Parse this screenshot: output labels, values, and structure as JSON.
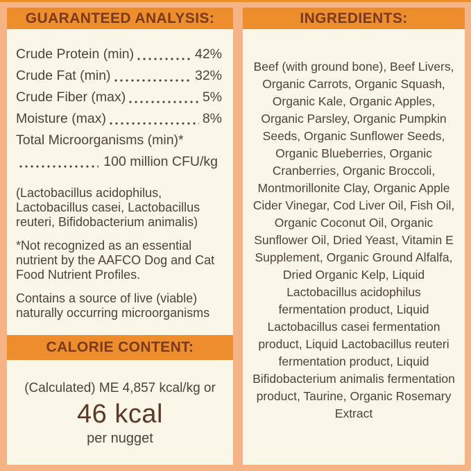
{
  "analysis": {
    "header": "GUARANTEED ANALYSIS:",
    "rows": [
      {
        "label": "Crude Protein (min)",
        "value": "42%"
      },
      {
        "label": "Crude Fat (min)",
        "value": "32%"
      },
      {
        "label": "Crude Fiber (max)",
        "value": "5%"
      },
      {
        "label": "Moisture (max)",
        "value": "8%"
      }
    ],
    "microorganisms_label": "Total Microorganisms (min)*",
    "microorganisms_value": "100 million CFU/kg",
    "notes": [
      "(Lactobacillus acidophilus, Lactobacillus casei, Lactobacillus reuteri, Bifidobacterium animalis)",
      "*Not recognized as an essential nutrient by the AAFCO Dog and Cat Food Nutrient Profiles.",
      "Contains a source of live (viable) naturally occurring microorganisms"
    ]
  },
  "calories": {
    "header": "CALORIE CONTENT:",
    "line1": "(Calculated) ME 4,857 kcal/kg or",
    "value": "46 kcal",
    "unit": "per nugget"
  },
  "ingredients": {
    "header": "INGREDIENTS:",
    "text": "Beef (with ground bone), Beef Livers, Organic Carrots, Organic Squash, Organic Kale, Organic Apples, Organic Parsley, Organic Pumpkin Seeds, Organic Sunflower Seeds, Organic Blueberries, Organic Cranberries, Organic Broccoli, Montmorillonite Clay, Organic Apple Cider Vinegar, Cod Liver Oil, Fish Oil, Organic Coconut Oil, Organic Sunflower Oil, Dried Yeast, Vitamin E Supplement, Organic Ground Alfalfa, Dried Organic Kelp, Liquid Lactobacillus acidophilus fermentation product, Liquid Lactobacillus casei fermentation product, Liquid Lactobacillus reuteri fermentation product, Liquid Bifidobacterium animalis fermentation product, Taurine, Organic Rosemary Extract"
  },
  "colors": {
    "band_orange": "#EE8D2C",
    "border_salmon": "#F6B385",
    "panel_cream": "#FBF7E8",
    "band_text_brown": "#7A3A1C",
    "body_text": "#4D4238",
    "calorie_value_brown": "#5B3827"
  }
}
